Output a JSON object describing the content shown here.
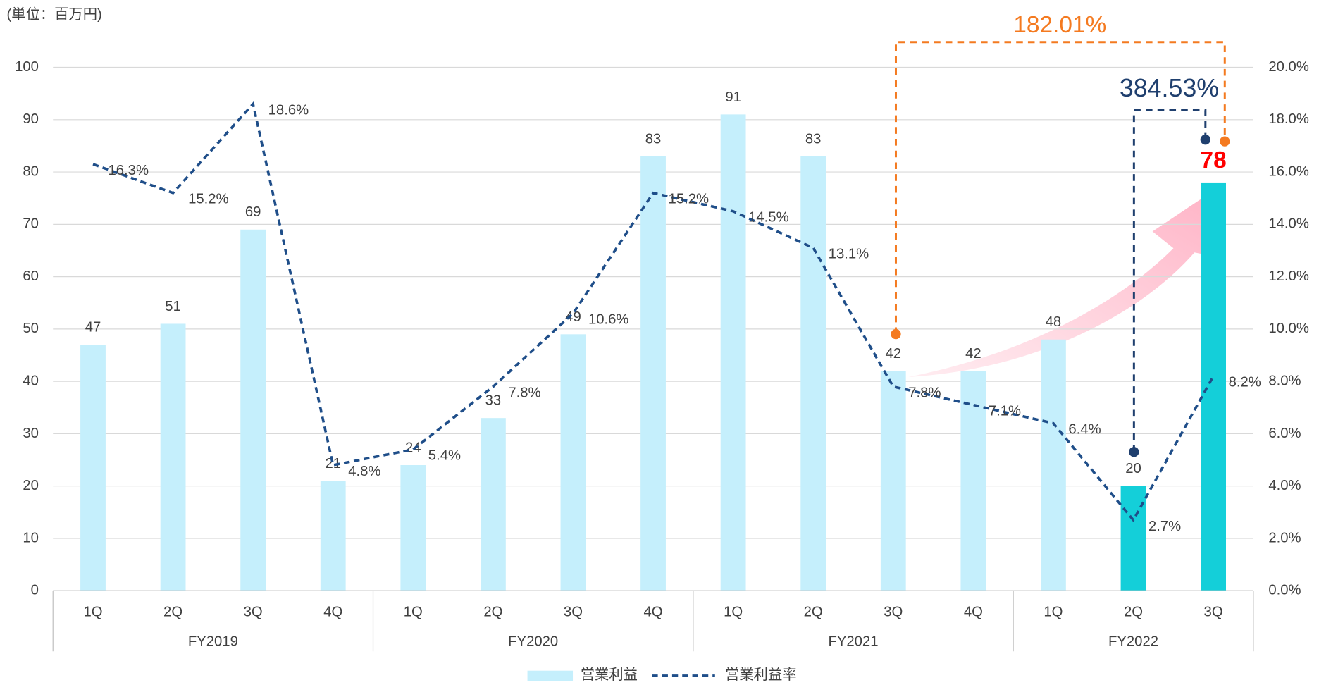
{
  "chart_data": {
    "type": "bar-line",
    "unit_label": "(単位：百万円)",
    "annotations": [
      "182.01%",
      "384.53%"
    ],
    "groups": [
      {
        "name": "FY2019",
        "categories": [
          "1Q",
          "2Q",
          "3Q",
          "4Q"
        ]
      },
      {
        "name": "FY2020",
        "categories": [
          "1Q",
          "2Q",
          "3Q",
          "4Q"
        ]
      },
      {
        "name": "FY2021",
        "categories": [
          "1Q",
          "2Q",
          "3Q",
          "4Q"
        ]
      },
      {
        "name": "FY2022",
        "categories": [
          "1Q",
          "2Q",
          "3Q"
        ]
      }
    ],
    "series": [
      {
        "name": "営業利益",
        "type": "bar",
        "color": "#c5effc",
        "colors": [
          "#c5effc",
          "#c5effc",
          "#c5effc",
          "#c5effc",
          "#c5effc",
          "#c5effc",
          "#c5effc",
          "#c5effc",
          "#c5effc",
          "#c5effc",
          "#c5effc",
          "#c5effc",
          "#c5effc",
          "#14cfd9",
          "#14cfd9"
        ],
        "values": [
          47,
          51,
          69,
          21,
          24,
          33,
          49,
          83,
          91,
          83,
          42,
          42,
          48,
          20,
          78
        ]
      },
      {
        "name": "営業利益率",
        "type": "line",
        "axis": "y2",
        "color": "#1f4e89",
        "values": [
          16.3,
          15.2,
          18.6,
          4.8,
          5.4,
          7.8,
          10.6,
          15.2,
          14.5,
          13.1,
          7.8,
          7.1,
          6.4,
          2.7,
          8.2
        ],
        "value_labels": [
          "16.3%",
          "15.2%",
          "18.6%",
          "4.8%",
          "5.4%",
          "7.8%",
          "10.6%",
          "15.2%",
          "14.5%",
          "13.1%",
          "7.8%",
          "7.1%",
          "6.4%",
          "2.7%",
          "8.2%"
        ]
      }
    ],
    "ylim": [
      0,
      100
    ],
    "yticks": [
      0,
      10,
      20,
      30,
      40,
      50,
      60,
      70,
      80,
      90,
      100
    ],
    "y2lim": [
      0,
      20
    ],
    "y2ticks": [
      {
        "value": 0,
        "label": "0.0%"
      },
      {
        "value": 2,
        "label": "2.0%"
      },
      {
        "value": 4,
        "label": "4.0%"
      },
      {
        "value": 6,
        "label": "6.0%"
      },
      {
        "value": 8,
        "label": "8.0%"
      },
      {
        "value": 10,
        "label": "10.0%"
      },
      {
        "value": 12,
        "label": "12.0%"
      },
      {
        "value": 14,
        "label": "14.0%"
      },
      {
        "value": 16,
        "label": "16.0%"
      },
      {
        "value": 18,
        "label": "18.0%"
      },
      {
        "value": 20,
        "label": "20.0%"
      }
    ],
    "grid": true
  }
}
